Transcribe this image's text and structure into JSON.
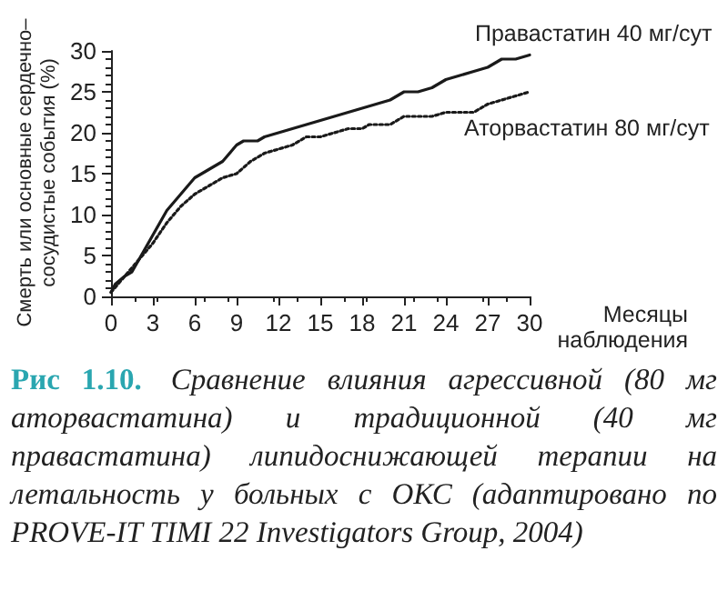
{
  "chart_data": {
    "type": "line",
    "xlabel": "Месяцы наблюдения",
    "ylabel": "Смерть или основные сердечно–сосудистые события (%)",
    "xlim": [
      0,
      30
    ],
    "xticks": [
      0,
      3,
      6,
      9,
      12,
      15,
      18,
      21,
      24,
      27,
      30
    ],
    "ylim": [
      0,
      30
    ],
    "yticks": [
      0,
      5,
      10,
      15,
      20,
      25,
      30
    ],
    "grid": false,
    "legend": false,
    "marker": "none",
    "series": [
      {
        "name": "Правастатин 40 мг/сут",
        "color": "#1a1a1a",
        "line_style": "solid",
        "x": [
          0,
          0.3,
          1,
          1.5,
          2,
          3,
          4,
          5,
          6,
          7,
          8,
          9,
          9.5,
          10.5,
          11,
          12,
          13,
          14,
          15,
          16,
          17,
          18,
          19,
          20,
          21,
          22,
          23,
          24,
          25,
          26,
          27,
          28,
          29,
          30
        ],
        "values": [
          0.5,
          1.5,
          2.5,
          3,
          4.5,
          7.5,
          10.5,
          12.5,
          14.5,
          15.5,
          16.5,
          18.5,
          19,
          19,
          19.5,
          20,
          20.5,
          21,
          21.5,
          22,
          22.5,
          23,
          23.5,
          24,
          25,
          25,
          25.5,
          26.5,
          27,
          27.5,
          28,
          29,
          29,
          29.5
        ]
      },
      {
        "name": "Аторвастатин 80 мг/сут",
        "color": "#1a1a1a",
        "line_style": "dotted",
        "x": [
          0,
          1,
          2,
          3,
          4,
          5,
          6,
          7,
          8,
          9,
          10,
          11,
          12,
          13,
          14,
          15,
          16,
          17,
          18,
          18.5,
          20,
          21,
          22,
          23,
          24,
          25,
          26,
          27,
          28,
          29,
          30
        ],
        "values": [
          0.5,
          2.5,
          4.5,
          6.5,
          9,
          11,
          12.5,
          13.5,
          14.5,
          15,
          16.5,
          17.5,
          18,
          18.5,
          19.5,
          19.5,
          20,
          20.5,
          20.5,
          21,
          21,
          22,
          22,
          22,
          22.5,
          22.5,
          22.5,
          23.5,
          24,
          24.5,
          25
        ]
      }
    ],
    "annotations": [
      "Рис 1.10.",
      "Сравнение влияния агрессивной (80 мг аторвастатина) и традиционной (40 мг правастатина) липидоснижающей терапии на летальность у больных с ОКС (адаптировано по PROVE-IT TIMI 22 Investigators Group, 2004)"
    ]
  }
}
